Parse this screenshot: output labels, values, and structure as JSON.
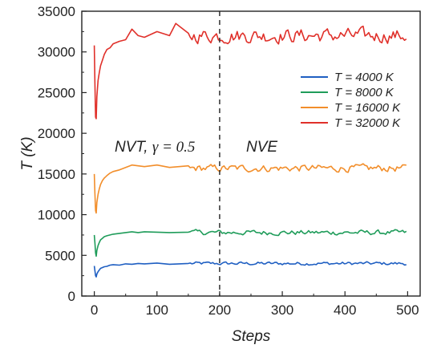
{
  "chart_data": {
    "type": "line",
    "title": "",
    "xlabel": "Steps",
    "ylabel": "T (K)",
    "xlim": [
      -20,
      520
    ],
    "ylim": [
      0,
      35000
    ],
    "xticks": [
      0,
      100,
      200,
      300,
      400,
      500
    ],
    "yticks": [
      0,
      5000,
      10000,
      15000,
      20000,
      25000,
      30000,
      35000
    ],
    "grid": false,
    "legend_position": "right",
    "annotations": {
      "divider_x": 200,
      "nvt_prefix": "NVT, ",
      "nvt_gamma": "γ = 0.5",
      "nve": "NVE"
    },
    "series": [
      {
        "name": "T = 4000 K",
        "color": "#1f5fc2",
        "target": 4000,
        "noise": 180,
        "x": [
          0,
          1,
          2,
          3,
          4,
          6,
          8,
          10,
          13,
          16,
          20,
          25,
          30,
          40,
          50,
          60,
          70,
          80,
          100,
          120,
          150
        ],
        "y": [
          3700,
          3100,
          2500,
          2350,
          2700,
          3000,
          3200,
          3400,
          3500,
          3600,
          3650,
          3800,
          3850,
          3800,
          3950,
          3900,
          4000,
          3950,
          4050,
          3900,
          4000
        ]
      },
      {
        "name": "T = 8000 K",
        "color": "#1f9c5a",
        "target": 7800,
        "noise": 260,
        "x": [
          0,
          1,
          2,
          3,
          4,
          6,
          8,
          10,
          13,
          16,
          20,
          25,
          30,
          40,
          50,
          60,
          70,
          80,
          100,
          120,
          150
        ],
        "y": [
          7500,
          6500,
          5300,
          4900,
          5600,
          6200,
          6600,
          6900,
          7100,
          7300,
          7400,
          7500,
          7600,
          7700,
          7800,
          7900,
          7800,
          7900,
          7850,
          7800,
          7850
        ]
      },
      {
        "name": "T = 16000 K",
        "color": "#f28e2b",
        "target": 15700,
        "noise": 380,
        "x": [
          0,
          1,
          2,
          3,
          4,
          6,
          8,
          10,
          13,
          16,
          20,
          25,
          30,
          40,
          50,
          60,
          70,
          80,
          100,
          120,
          150
        ],
        "y": [
          15000,
          12500,
          10500,
          10200,
          11500,
          12500,
          13200,
          13700,
          14200,
          14500,
          14800,
          15100,
          15300,
          15500,
          15800,
          16100,
          16000,
          15900,
          16100,
          15800,
          16000
        ]
      },
      {
        "name": "T = 32000 K",
        "color": "#e0302a",
        "target": 32000,
        "noise": 750,
        "x": [
          0,
          1,
          2,
          3,
          4,
          6,
          8,
          10,
          13,
          16,
          20,
          25,
          30,
          40,
          50,
          60,
          70,
          80,
          100,
          120,
          130,
          150
        ],
        "y": [
          30800,
          26000,
          22000,
          21800,
          24500,
          26500,
          27500,
          28300,
          29000,
          29700,
          30300,
          30500,
          31000,
          31300,
          31500,
          32800,
          32000,
          31800,
          32500,
          32000,
          33500,
          32300
        ]
      }
    ]
  }
}
